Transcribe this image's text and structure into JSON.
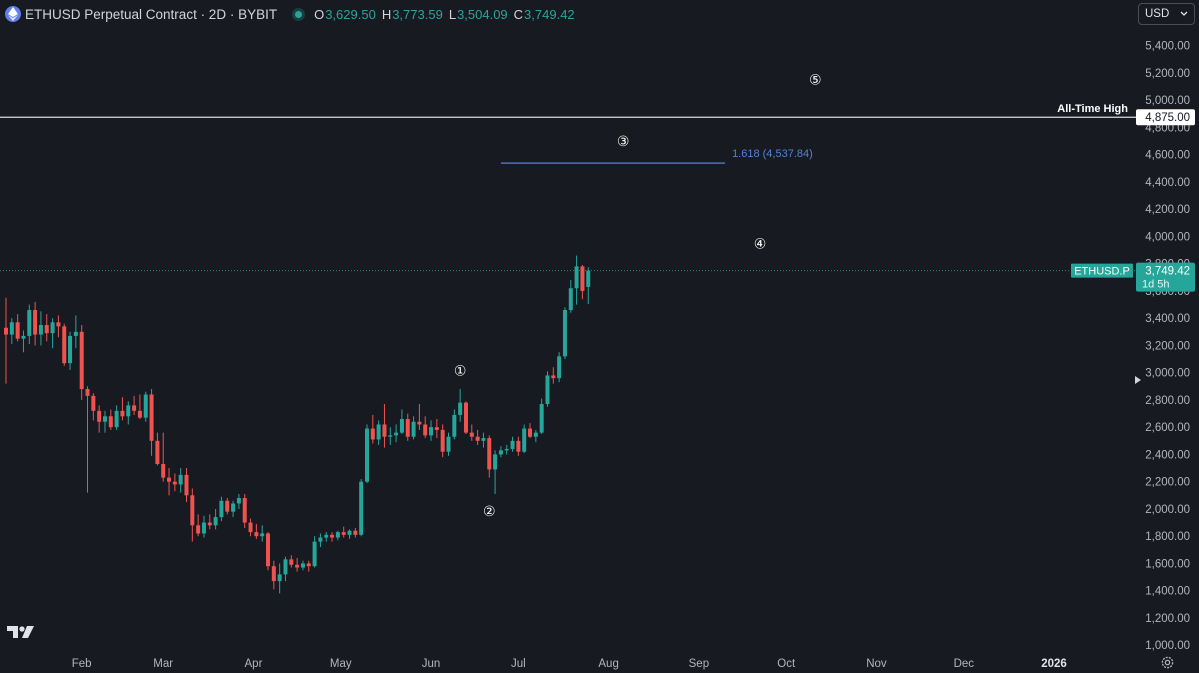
{
  "header": {
    "title": "ETHUSD Perpetual Contract · 2D · BYBIT",
    "ohlc": [
      {
        "key": "O",
        "value": "3,629.50"
      },
      {
        "key": "H",
        "value": "3,773.59"
      },
      {
        "key": "L",
        "value": "3,504.09"
      },
      {
        "key": "C",
        "value": "3,749.42"
      }
    ],
    "currency": "USD"
  },
  "colors": {
    "background": "#181a21",
    "up": "#26a69a",
    "down": "#ef5350",
    "fib": "#4a72b8",
    "text": "#d1d4dc"
  },
  "chart_data": {
    "type": "candlestick",
    "symbol": "ETHUSD.P",
    "y_axis_ticks": [
      "1,000.00",
      "1,200.00",
      "1,400.00",
      "1,600.00",
      "1,800.00",
      "2,000.00",
      "2,200.00",
      "2,400.00",
      "2,600.00",
      "2,800.00",
      "3,000.00",
      "3,200.00",
      "3,400.00",
      "3,600.00",
      "3,800.00",
      "4,000.00",
      "4,200.00",
      "4,400.00",
      "4,600.00",
      "4,800.00",
      "5,000.00",
      "5,200.00",
      "5,400.00"
    ],
    "ylim": [
      950,
      5530
    ],
    "x_axis_labels": [
      {
        "label": "Feb",
        "date": "2025-02-01"
      },
      {
        "label": "Mar",
        "date": "2025-03-01"
      },
      {
        "label": "Apr",
        "date": "2025-04-01"
      },
      {
        "label": "May",
        "date": "2025-05-01"
      },
      {
        "label": "Jun",
        "date": "2025-06-01"
      },
      {
        "label": "Jul",
        "date": "2025-07-01"
      },
      {
        "label": "Aug",
        "date": "2025-08-01"
      },
      {
        "label": "Sep",
        "date": "2025-09-01"
      },
      {
        "label": "Oct",
        "date": "2025-10-01"
      },
      {
        "label": "Nov",
        "date": "2025-11-01"
      },
      {
        "label": "Dec",
        "date": "2025-12-01"
      },
      {
        "label": "2026",
        "date": "2026-01-01"
      }
    ],
    "xlim": [
      "2025-01-06",
      "2026-01-24"
    ],
    "all_time_high": {
      "label": "All-Time High",
      "value": 4875,
      "value_label": "4,875.00"
    },
    "fib_extension": {
      "label": "1.618 (4,537.84)",
      "value": 4537.84,
      "start": "2025-06-25",
      "end": "2025-09-10"
    },
    "last_price": {
      "value": 3749.42,
      "label": "3,749.42",
      "countdown": "1d 5h",
      "symbol_label": "ETHUSD.P"
    },
    "wave_labels": [
      {
        "label": "①",
        "date": "2025-06-11",
        "value": 2980
      },
      {
        "label": "②",
        "date": "2025-06-21",
        "value": 1950
      },
      {
        "label": "③",
        "date": "2025-08-06",
        "value": 4665
      },
      {
        "label": "④",
        "date": "2025-09-22",
        "value": 3910
      },
      {
        "label": "⑤",
        "date": "2025-10-11",
        "value": 5115
      }
    ],
    "candles": [
      {
        "date": "2025-01-06",
        "open": 3330,
        "high": 3550,
        "low": 2920,
        "close": 3280
      },
      {
        "date": "2025-01-08",
        "open": 3280,
        "high": 3400,
        "low": 3210,
        "close": 3370
      },
      {
        "date": "2025-01-10",
        "open": 3370,
        "high": 3430,
        "low": 3230,
        "close": 3250
      },
      {
        "date": "2025-01-12",
        "open": 3250,
        "high": 3310,
        "low": 3150,
        "close": 3270
      },
      {
        "date": "2025-01-14",
        "open": 3270,
        "high": 3500,
        "low": 3210,
        "close": 3460
      },
      {
        "date": "2025-01-16",
        "open": 3460,
        "high": 3520,
        "low": 3200,
        "close": 3280
      },
      {
        "date": "2025-01-18",
        "open": 3280,
        "high": 3450,
        "low": 3200,
        "close": 3350
      },
      {
        "date": "2025-01-20",
        "open": 3350,
        "high": 3430,
        "low": 3230,
        "close": 3290
      },
      {
        "date": "2025-01-22",
        "open": 3290,
        "high": 3400,
        "low": 3180,
        "close": 3370
      },
      {
        "date": "2025-01-24",
        "open": 3370,
        "high": 3420,
        "low": 3260,
        "close": 3340
      },
      {
        "date": "2025-01-26",
        "open": 3340,
        "high": 3360,
        "low": 3050,
        "close": 3070
      },
      {
        "date": "2025-01-28",
        "open": 3070,
        "high": 3300,
        "low": 3020,
        "close": 3270
      },
      {
        "date": "2025-01-30",
        "open": 3270,
        "high": 3420,
        "low": 3180,
        "close": 3300
      },
      {
        "date": "2025-02-01",
        "open": 3300,
        "high": 3350,
        "low": 2800,
        "close": 2880
      },
      {
        "date": "2025-02-03",
        "open": 2880,
        "high": 2900,
        "low": 2120,
        "close": 2830
      },
      {
        "date": "2025-02-05",
        "open": 2830,
        "high": 2850,
        "low": 2650,
        "close": 2720
      },
      {
        "date": "2025-02-07",
        "open": 2720,
        "high": 2760,
        "low": 2560,
        "close": 2640
      },
      {
        "date": "2025-02-09",
        "open": 2640,
        "high": 2720,
        "low": 2560,
        "close": 2680
      },
      {
        "date": "2025-02-11",
        "open": 2680,
        "high": 2730,
        "low": 2580,
        "close": 2600
      },
      {
        "date": "2025-02-13",
        "open": 2600,
        "high": 2760,
        "low": 2580,
        "close": 2720
      },
      {
        "date": "2025-02-15",
        "open": 2720,
        "high": 2820,
        "low": 2650,
        "close": 2680
      },
      {
        "date": "2025-02-17",
        "open": 2680,
        "high": 2790,
        "low": 2620,
        "close": 2760
      },
      {
        "date": "2025-02-19",
        "open": 2760,
        "high": 2830,
        "low": 2690,
        "close": 2720
      },
      {
        "date": "2025-02-21",
        "open": 2720,
        "high": 2840,
        "low": 2660,
        "close": 2670
      },
      {
        "date": "2025-02-23",
        "open": 2670,
        "high": 2860,
        "low": 2640,
        "close": 2840
      },
      {
        "date": "2025-02-25",
        "open": 2840,
        "high": 2880,
        "low": 2390,
        "close": 2500
      },
      {
        "date": "2025-02-27",
        "open": 2500,
        "high": 2560,
        "low": 2320,
        "close": 2330
      },
      {
        "date": "2025-03-01",
        "open": 2330,
        "high": 2560,
        "low": 2200,
        "close": 2230
      },
      {
        "date": "2025-03-03",
        "open": 2230,
        "high": 2300,
        "low": 2100,
        "close": 2200
      },
      {
        "date": "2025-03-05",
        "open": 2200,
        "high": 2260,
        "low": 2130,
        "close": 2180
      },
      {
        "date": "2025-03-07",
        "open": 2180,
        "high": 2300,
        "low": 2120,
        "close": 2250
      },
      {
        "date": "2025-03-09",
        "open": 2250,
        "high": 2300,
        "low": 2050,
        "close": 2100
      },
      {
        "date": "2025-03-11",
        "open": 2100,
        "high": 2150,
        "low": 1760,
        "close": 1880
      },
      {
        "date": "2025-03-13",
        "open": 1880,
        "high": 1960,
        "low": 1800,
        "close": 1820
      },
      {
        "date": "2025-03-15",
        "open": 1820,
        "high": 1950,
        "low": 1790,
        "close": 1900
      },
      {
        "date": "2025-03-17",
        "open": 1900,
        "high": 1960,
        "low": 1850,
        "close": 1880
      },
      {
        "date": "2025-03-19",
        "open": 1880,
        "high": 2000,
        "low": 1850,
        "close": 1940
      },
      {
        "date": "2025-03-21",
        "open": 1940,
        "high": 2090,
        "low": 1910,
        "close": 2060
      },
      {
        "date": "2025-03-23",
        "open": 2060,
        "high": 2080,
        "low": 1960,
        "close": 1980
      },
      {
        "date": "2025-03-25",
        "open": 1980,
        "high": 2060,
        "low": 1940,
        "close": 2040
      },
      {
        "date": "2025-03-27",
        "open": 2040,
        "high": 2110,
        "low": 2000,
        "close": 2080
      },
      {
        "date": "2025-03-29",
        "open": 2080,
        "high": 2110,
        "low": 1860,
        "close": 1900
      },
      {
        "date": "2025-03-31",
        "open": 1900,
        "high": 1930,
        "low": 1800,
        "close": 1830
      },
      {
        "date": "2025-04-02",
        "open": 1830,
        "high": 1890,
        "low": 1780,
        "close": 1800
      },
      {
        "date": "2025-04-04",
        "open": 1800,
        "high": 1880,
        "low": 1760,
        "close": 1820
      },
      {
        "date": "2025-04-06",
        "open": 1820,
        "high": 1830,
        "low": 1550,
        "close": 1580
      },
      {
        "date": "2025-04-08",
        "open": 1580,
        "high": 1620,
        "low": 1410,
        "close": 1470
      },
      {
        "date": "2025-04-10",
        "open": 1470,
        "high": 1600,
        "low": 1380,
        "close": 1520
      },
      {
        "date": "2025-04-12",
        "open": 1520,
        "high": 1650,
        "low": 1470,
        "close": 1630
      },
      {
        "date": "2025-04-14",
        "open": 1630,
        "high": 1660,
        "low": 1570,
        "close": 1590
      },
      {
        "date": "2025-04-16",
        "open": 1590,
        "high": 1640,
        "low": 1540,
        "close": 1570
      },
      {
        "date": "2025-04-18",
        "open": 1570,
        "high": 1620,
        "low": 1550,
        "close": 1600
      },
      {
        "date": "2025-04-20",
        "open": 1600,
        "high": 1620,
        "low": 1540,
        "close": 1580
      },
      {
        "date": "2025-04-22",
        "open": 1580,
        "high": 1800,
        "low": 1570,
        "close": 1760
      },
      {
        "date": "2025-04-24",
        "open": 1760,
        "high": 1820,
        "low": 1720,
        "close": 1790
      },
      {
        "date": "2025-04-26",
        "open": 1790,
        "high": 1830,
        "low": 1760,
        "close": 1810
      },
      {
        "date": "2025-04-28",
        "open": 1810,
        "high": 1830,
        "low": 1760,
        "close": 1790
      },
      {
        "date": "2025-04-30",
        "open": 1790,
        "high": 1840,
        "low": 1770,
        "close": 1830
      },
      {
        "date": "2025-05-02",
        "open": 1830,
        "high": 1870,
        "low": 1790,
        "close": 1810
      },
      {
        "date": "2025-05-04",
        "open": 1810,
        "high": 1850,
        "low": 1780,
        "close": 1840
      },
      {
        "date": "2025-05-06",
        "open": 1840,
        "high": 1860,
        "low": 1790,
        "close": 1810
      },
      {
        "date": "2025-05-08",
        "open": 1810,
        "high": 2220,
        "low": 1800,
        "close": 2200
      },
      {
        "date": "2025-05-10",
        "open": 2200,
        "high": 2620,
        "low": 2190,
        "close": 2590
      },
      {
        "date": "2025-05-12",
        "open": 2590,
        "high": 2690,
        "low": 2480,
        "close": 2510
      },
      {
        "date": "2025-05-14",
        "open": 2510,
        "high": 2650,
        "low": 2470,
        "close": 2620
      },
      {
        "date": "2025-05-16",
        "open": 2620,
        "high": 2770,
        "low": 2450,
        "close": 2530
      },
      {
        "date": "2025-05-18",
        "open": 2530,
        "high": 2600,
        "low": 2470,
        "close": 2540
      },
      {
        "date": "2025-05-20",
        "open": 2540,
        "high": 2620,
        "low": 2490,
        "close": 2560
      },
      {
        "date": "2025-05-22",
        "open": 2560,
        "high": 2730,
        "low": 2550,
        "close": 2660
      },
      {
        "date": "2025-05-24",
        "open": 2660,
        "high": 2700,
        "low": 2500,
        "close": 2530
      },
      {
        "date": "2025-05-26",
        "open": 2530,
        "high": 2680,
        "low": 2510,
        "close": 2640
      },
      {
        "date": "2025-05-28",
        "open": 2640,
        "high": 2770,
        "low": 2580,
        "close": 2620
      },
      {
        "date": "2025-05-30",
        "open": 2620,
        "high": 2680,
        "low": 2520,
        "close": 2540
      },
      {
        "date": "2025-06-01",
        "open": 2540,
        "high": 2650,
        "low": 2500,
        "close": 2600
      },
      {
        "date": "2025-06-03",
        "open": 2600,
        "high": 2660,
        "low": 2520,
        "close": 2580
      },
      {
        "date": "2025-06-05",
        "open": 2580,
        "high": 2620,
        "low": 2380,
        "close": 2420
      },
      {
        "date": "2025-06-07",
        "open": 2420,
        "high": 2560,
        "low": 2390,
        "close": 2530
      },
      {
        "date": "2025-06-09",
        "open": 2530,
        "high": 2730,
        "low": 2510,
        "close": 2690
      },
      {
        "date": "2025-06-11",
        "open": 2690,
        "high": 2880,
        "low": 2640,
        "close": 2780
      },
      {
        "date": "2025-06-13",
        "open": 2780,
        "high": 2790,
        "low": 2550,
        "close": 2560
      },
      {
        "date": "2025-06-15",
        "open": 2560,
        "high": 2620,
        "low": 2500,
        "close": 2530
      },
      {
        "date": "2025-06-17",
        "open": 2530,
        "high": 2580,
        "low": 2470,
        "close": 2500
      },
      {
        "date": "2025-06-19",
        "open": 2500,
        "high": 2560,
        "low": 2450,
        "close": 2520
      },
      {
        "date": "2025-06-21",
        "open": 2520,
        "high": 2540,
        "low": 2230,
        "close": 2290
      },
      {
        "date": "2025-06-23",
        "open": 2290,
        "high": 2430,
        "low": 2110,
        "close": 2400
      },
      {
        "date": "2025-06-25",
        "open": 2400,
        "high": 2460,
        "low": 2380,
        "close": 2430
      },
      {
        "date": "2025-06-27",
        "open": 2430,
        "high": 2470,
        "low": 2400,
        "close": 2440
      },
      {
        "date": "2025-06-29",
        "open": 2440,
        "high": 2530,
        "low": 2420,
        "close": 2500
      },
      {
        "date": "2025-07-01",
        "open": 2500,
        "high": 2530,
        "low": 2390,
        "close": 2420
      },
      {
        "date": "2025-07-03",
        "open": 2420,
        "high": 2620,
        "low": 2410,
        "close": 2590
      },
      {
        "date": "2025-07-05",
        "open": 2590,
        "high": 2630,
        "low": 2520,
        "close": 2530
      },
      {
        "date": "2025-07-07",
        "open": 2530,
        "high": 2580,
        "low": 2490,
        "close": 2560
      },
      {
        "date": "2025-07-09",
        "open": 2560,
        "high": 2810,
        "low": 2550,
        "close": 2770
      },
      {
        "date": "2025-07-11",
        "open": 2770,
        "high": 3010,
        "low": 2750,
        "close": 2980
      },
      {
        "date": "2025-07-13",
        "open": 2980,
        "high": 3040,
        "low": 2920,
        "close": 2960
      },
      {
        "date": "2025-07-15",
        "open": 2960,
        "high": 3150,
        "low": 2930,
        "close": 3120
      },
      {
        "date": "2025-07-17",
        "open": 3120,
        "high": 3480,
        "low": 3100,
        "close": 3460
      },
      {
        "date": "2025-07-19",
        "open": 3460,
        "high": 3680,
        "low": 3440,
        "close": 3620
      },
      {
        "date": "2025-07-21",
        "open": 3620,
        "high": 3860,
        "low": 3500,
        "close": 3780
      },
      {
        "date": "2025-07-23",
        "open": 3780,
        "high": 3790,
        "low": 3540,
        "close": 3600
      },
      {
        "date": "2025-07-25",
        "open": 3629.5,
        "high": 3773.59,
        "low": 3504.09,
        "close": 3749.42
      }
    ]
  }
}
